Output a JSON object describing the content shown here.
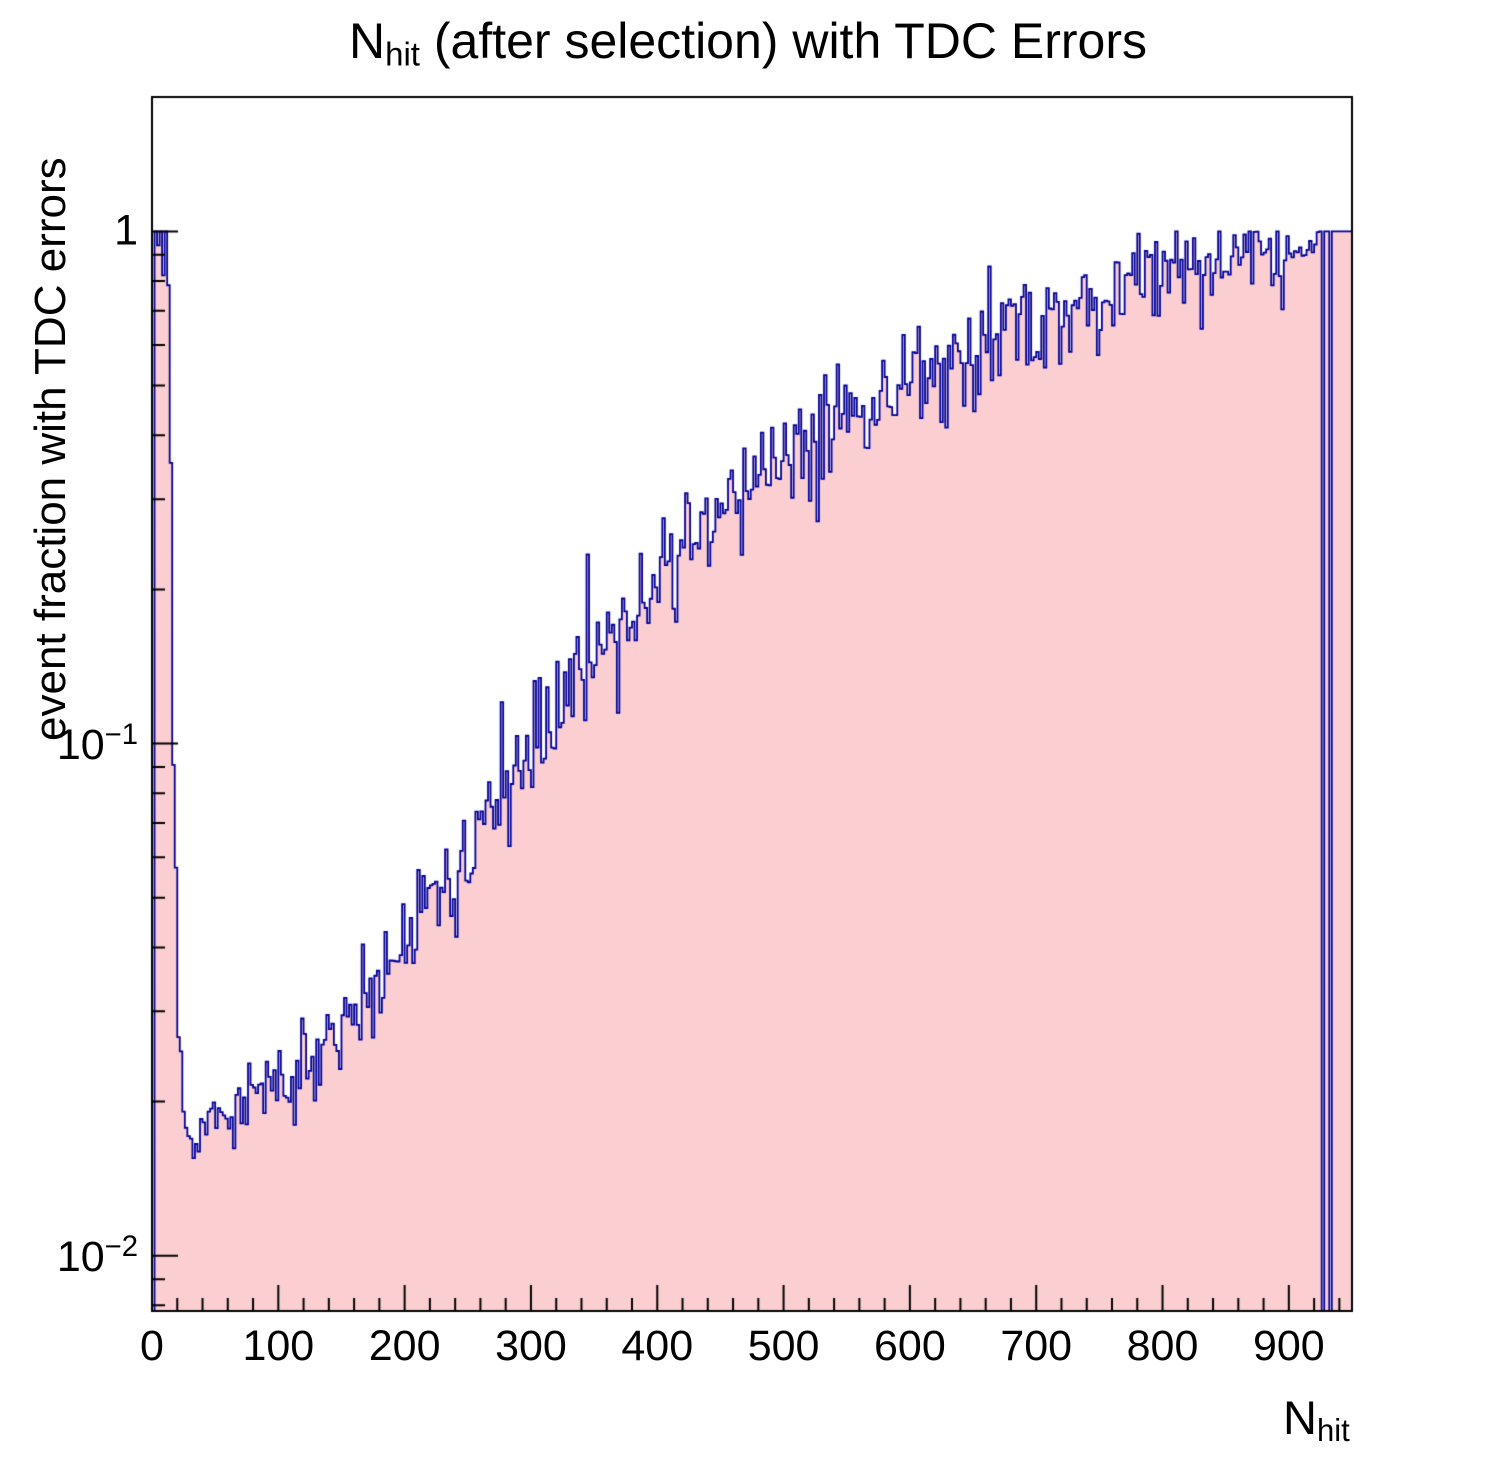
{
  "title": {
    "prefix": "N",
    "subscript": "hit",
    "suffix": " (after selection) with TDC Errors"
  },
  "axes": {
    "y_label": "event fraction with TDC errors",
    "x_label": {
      "prefix": "N",
      "subscript": "hit"
    }
  },
  "chart_data": {
    "type": "area",
    "subtype": "step-histogram",
    "title": "N_hit (after selection) with TDC Errors",
    "xlabel": "N_hit",
    "ylabel": "event fraction with TDC errors",
    "xlim": [
      0,
      950
    ],
    "ylim": [
      0.0078,
      1.83
    ],
    "yscale": "log",
    "grid": false,
    "legend": "none",
    "x_ticks": [
      0,
      100,
      200,
      300,
      400,
      500,
      600,
      700,
      800,
      900
    ],
    "x_minor_step": 20,
    "y_ticks": [
      {
        "value": 1,
        "label": "1"
      },
      {
        "value": 0.1,
        "label": "10^−1"
      },
      {
        "value": 0.01,
        "label": "10^−2"
      }
    ],
    "bin_width": 2,
    "trend_points": {
      "x": [
        2,
        4,
        6,
        8,
        10,
        12,
        14,
        16,
        18,
        20,
        24,
        28,
        34,
        40,
        50,
        60,
        80,
        100,
        120,
        140,
        160,
        180,
        200,
        225,
        250,
        275,
        300,
        325,
        350,
        375,
        400,
        425,
        450,
        475,
        500,
        525,
        550,
        575,
        600,
        625,
        650,
        675,
        700,
        725,
        750,
        775,
        800,
        825,
        850,
        875,
        900,
        915,
        924,
        950
      ],
      "y": [
        1,
        0.85,
        1,
        0.8,
        1,
        0.9,
        0.35,
        0.1,
        0.05,
        0.028,
        0.019,
        0.0162,
        0.016,
        0.0178,
        0.0188,
        0.0193,
        0.0202,
        0.0215,
        0.023,
        0.0258,
        0.03,
        0.035,
        0.042,
        0.051,
        0.062,
        0.078,
        0.1,
        0.122,
        0.15,
        0.18,
        0.215,
        0.25,
        0.29,
        0.325,
        0.36,
        0.4,
        0.44,
        0.475,
        0.51,
        0.545,
        0.585,
        0.62,
        0.66,
        0.7,
        0.74,
        0.78,
        0.82,
        0.86,
        0.895,
        0.925,
        0.95,
        0.965,
        1,
        1
      ]
    },
    "empty_bins": [
      0,
      926,
      932
    ],
    "flat_top_from_x": 924,
    "noise": {
      "seed": 20240701,
      "clip_max": 1,
      "zones": [
        {
          "x_max": 13,
          "sigma_log10": 0.05
        },
        {
          "x_max": 22,
          "sigma_log10": 0.03
        },
        {
          "x_max": 60,
          "sigma_log10": 0.018
        },
        {
          "x_max": 150,
          "sigma_log10": 0.045
        },
        {
          "x_max": 300,
          "sigma_log10": 0.055
        },
        {
          "x_max": 750,
          "sigma_log10": 0.06
        },
        {
          "x_max": 900,
          "sigma_log10": 0.04
        },
        {
          "x_max": 951,
          "sigma_log10": 0.02
        }
      ]
    },
    "colors": {
      "fill": "#fbcfd1",
      "line": "#000099",
      "axis": "#000000",
      "background": "#ffffff"
    }
  }
}
